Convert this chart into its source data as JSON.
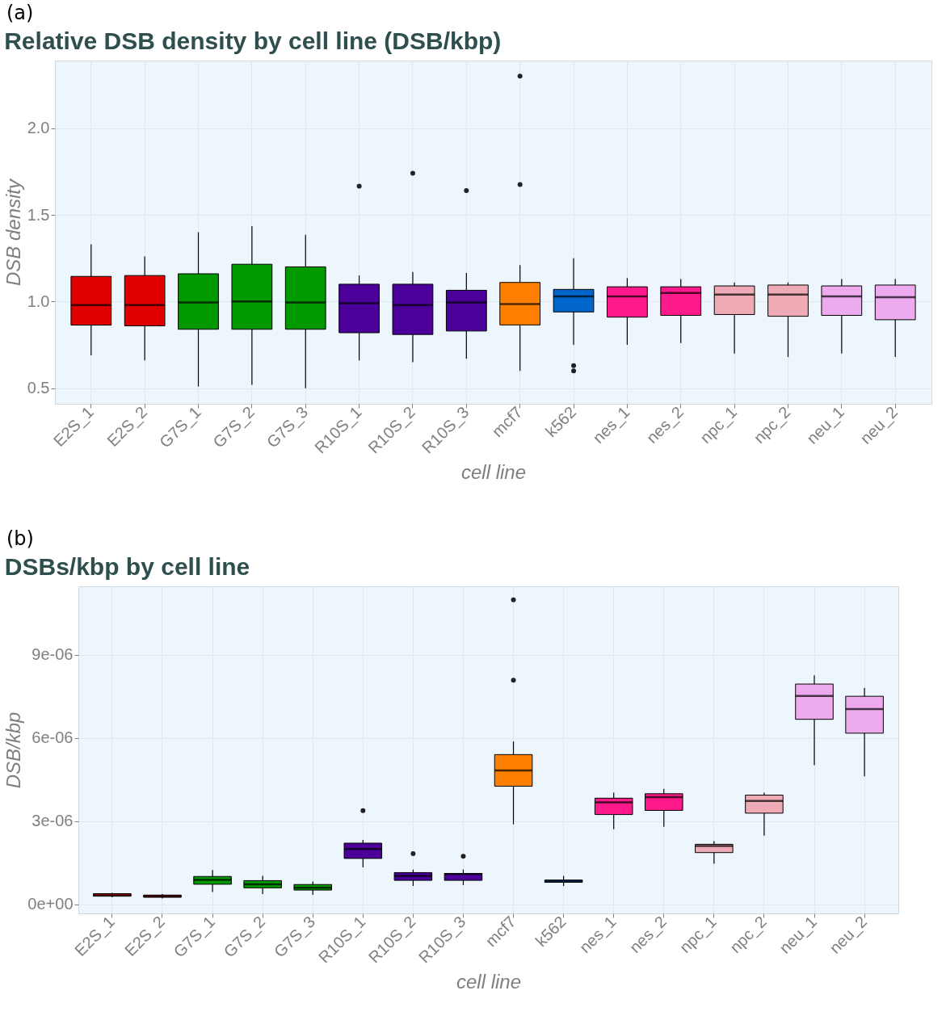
{
  "chart_data": [
    {
      "type": "box",
      "title": "Relative DSB density by cell line (DSB/kbp)",
      "xlabel": "cell line",
      "ylabel": "DSB density",
      "annotations": [
        "(a)"
      ],
      "categories": [
        "E2S_1",
        "E2S_2",
        "G7S_1",
        "G7S_2",
        "G7S_3",
        "R10S_1",
        "R10S_2",
        "R10S_3",
        "mcf7",
        "k562",
        "nes_1",
        "nes_2",
        "npc_1",
        "npc_2",
        "neu_1",
        "neu_2"
      ],
      "colors": [
        "#e00000",
        "#e00000",
        "#009900",
        "#009900",
        "#009900",
        "#4b0099",
        "#4b0099",
        "#4b0099",
        "#ff8000",
        "#0066cc",
        "#ff1a8c",
        "#ff1a8c",
        "#eeaab5",
        "#eeaab5",
        "#eeaaee",
        "#eeaaee"
      ],
      "boxes": [
        {
          "low": 0.69,
          "q1": 0.864,
          "median": 0.98,
          "q3": 1.145,
          "high": 1.33
        },
        {
          "low": 0.66,
          "q1": 0.86,
          "median": 0.98,
          "q3": 1.15,
          "high": 1.26
        },
        {
          "low": 0.51,
          "q1": 0.84,
          "median": 0.995,
          "q3": 1.16,
          "high": 1.4
        },
        {
          "low": 0.52,
          "q1": 0.84,
          "median": 1.0,
          "q3": 1.215,
          "high": 1.435
        },
        {
          "low": 0.5,
          "q1": 0.84,
          "median": 0.995,
          "q3": 1.2,
          "high": 1.385
        },
        {
          "low": 0.66,
          "q1": 0.82,
          "median": 0.99,
          "q3": 1.1,
          "high": 1.15,
          "outliers": [
            1.665
          ]
        },
        {
          "low": 0.65,
          "q1": 0.81,
          "median": 0.98,
          "q3": 1.1,
          "high": 1.17,
          "outliers": [
            1.74
          ]
        },
        {
          "low": 0.67,
          "q1": 0.83,
          "median": 0.995,
          "q3": 1.065,
          "high": 1.165,
          "outliers": [
            1.64
          ]
        },
        {
          "low": 0.6,
          "q1": 0.865,
          "median": 0.985,
          "q3": 1.11,
          "high": 1.21,
          "outliers": [
            2.3,
            1.675
          ]
        },
        {
          "low": 0.75,
          "q1": 0.94,
          "median": 1.03,
          "q3": 1.07,
          "high": 1.25,
          "outliers": [
            0.63,
            0.6
          ]
        },
        {
          "low": 0.75,
          "q1": 0.91,
          "median": 1.03,
          "q3": 1.085,
          "high": 1.135
        },
        {
          "low": 0.76,
          "q1": 0.92,
          "median": 1.05,
          "q3": 1.085,
          "high": 1.13
        },
        {
          "low": 0.7,
          "q1": 0.925,
          "median": 1.04,
          "q3": 1.09,
          "high": 1.11
        },
        {
          "low": 0.68,
          "q1": 0.915,
          "median": 1.04,
          "q3": 1.095,
          "high": 1.11
        },
        {
          "low": 0.7,
          "q1": 0.92,
          "median": 1.03,
          "q3": 1.09,
          "high": 1.13
        },
        {
          "low": 0.68,
          "q1": 0.895,
          "median": 1.025,
          "q3": 1.095,
          "high": 1.13
        }
      ],
      "ylim": [
        0.41,
        2.39
      ],
      "yticks": [
        {
          "value": 0.5,
          "label": "0.5"
        },
        {
          "value": 1,
          "label": "1.0"
        },
        {
          "value": 1.5,
          "label": "1.5"
        },
        {
          "value": 2,
          "label": "2.0"
        }
      ],
      "grid": true
    },
    {
      "type": "box",
      "title": "DSBs/kbp by cell line",
      "xlabel": "cell line",
      "ylabel": "DSB/kbp",
      "annotations": [
        "(b)"
      ],
      "categories": [
        "E2S_1",
        "E2S_2",
        "G7S_1",
        "G7S_2",
        "G7S_3",
        "R10S_1",
        "R10S_2",
        "R10S_3",
        "mcf7",
        "k562",
        "nes_1",
        "nes_2",
        "npc_1",
        "npc_2",
        "neu_1",
        "neu_2"
      ],
      "colors": [
        "#e00000",
        "#e00000",
        "#009900",
        "#009900",
        "#009900",
        "#4b0099",
        "#4b0099",
        "#4b0099",
        "#ff8000",
        "#0066cc",
        "#ff1a8c",
        "#ff1a8c",
        "#eeaab5",
        "#eeaab5",
        "#eeaaee",
        "#eeaaee"
      ],
      "boxes": [
        {
          "low": 2.6e-07,
          "q1": 3e-07,
          "median": 3.3e-07,
          "q3": 3.9e-07,
          "high": 4.2e-07
        },
        {
          "low": 2.2e-07,
          "q1": 2.6e-07,
          "median": 3e-07,
          "q3": 3.4e-07,
          "high": 3.8e-07
        },
        {
          "low": 4.5e-07,
          "q1": 7.3e-07,
          "median": 8.9e-07,
          "q3": 1.01e-06,
          "high": 1.24e-06
        },
        {
          "low": 3.8e-07,
          "q1": 6e-07,
          "median": 7.3e-07,
          "q3": 8.6e-07,
          "high": 1.03e-06
        },
        {
          "low": 3.5e-07,
          "q1": 5.2e-07,
          "median": 6e-07,
          "q3": 7.2e-07,
          "high": 8.3e-07
        },
        {
          "low": 1.34e-06,
          "q1": 1.66e-06,
          "median": 2e-06,
          "q3": 2.21e-06,
          "high": 2.33e-06,
          "outliers": [
            3.38e-06
          ]
        },
        {
          "low": 6.7e-07,
          "q1": 8.7e-07,
          "median": 1.03e-06,
          "q3": 1.15e-06,
          "high": 1.26e-06,
          "outliers": [
            1.83e-06
          ]
        },
        {
          "low": 7e-07,
          "q1": 8.7e-07,
          "median": 1.1e-06,
          "q3": 1.12e-06,
          "high": 1.26e-06,
          "outliers": [
            1.74e-06
          ]
        },
        {
          "low": 2.89e-06,
          "q1": 4.26e-06,
          "median": 4.83e-06,
          "q3": 5.4e-06,
          "high": 5.87e-06,
          "outliers": [
            8.08e-06,
            1.097e-05
          ]
        },
        {
          "low": 6.7e-07,
          "q1": 8e-07,
          "median": 8.4e-07,
          "q3": 8.8e-07,
          "high": 1.03e-06
        },
        {
          "low": 2.71e-06,
          "q1": 3.24e-06,
          "median": 3.68e-06,
          "q3": 3.83e-06,
          "high": 4.03e-06
        },
        {
          "low": 2.8e-06,
          "q1": 3.39e-06,
          "median": 3.87e-06,
          "q3": 3.99e-06,
          "high": 4.17e-06
        },
        {
          "low": 1.47e-06,
          "q1": 1.87e-06,
          "median": 2.11e-06,
          "q3": 2.17e-06,
          "high": 2.28e-06
        },
        {
          "low": 2.48e-06,
          "q1": 3.29e-06,
          "median": 3.73e-06,
          "q3": 3.94e-06,
          "high": 4.03e-06
        },
        {
          "low": 5.02e-06,
          "q1": 6.67e-06,
          "median": 7.51e-06,
          "q3": 7.94e-06,
          "high": 8.25e-06
        },
        {
          "low": 4.62e-06,
          "q1": 6.17e-06,
          "median": 7.04e-06,
          "q3": 7.5e-06,
          "high": 7.8e-06
        }
      ],
      "ylim": [
        -3.2e-07,
        1.146e-05
      ],
      "yticks": [
        {
          "value": 0,
          "label": "0e+00"
        },
        {
          "value": 3e-06,
          "label": "3e-06"
        },
        {
          "value": 6e-06,
          "label": "6e-06"
        },
        {
          "value": 9e-06,
          "label": "9e-06"
        }
      ],
      "grid": true
    }
  ]
}
